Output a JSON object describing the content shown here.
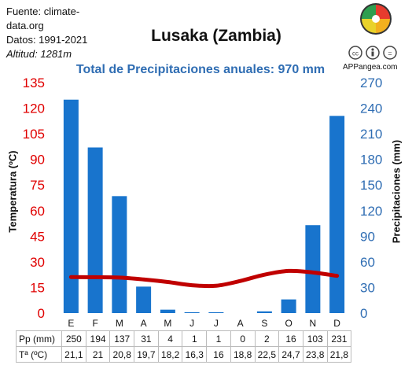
{
  "source": {
    "fuente_line1": "Fuente: climate-",
    "fuente_line2": "data.org",
    "datos": "Datos: 1991-2021",
    "altitud": "Altitud: 1281m"
  },
  "brand": "APPangea.com",
  "chart_data": {
    "type": "bar",
    "title": "Lusaka (Zambia)",
    "subtitle": "Total de Precipitaciones anuales: 970 mm",
    "categories": [
      "E",
      "F",
      "M",
      "A",
      "M",
      "J",
      "J",
      "A",
      "S",
      "O",
      "N",
      "D"
    ],
    "series": [
      {
        "name": "Pp (mm)",
        "type": "bar",
        "axis": "right",
        "values": [
          250,
          194,
          137,
          31,
          4,
          1,
          1,
          0,
          2,
          16,
          103,
          231
        ]
      },
      {
        "name": "Tª (ºC)",
        "type": "line",
        "axis": "left",
        "values": [
          21.1,
          21,
          20.8,
          19.7,
          18.2,
          16.3,
          16,
          18.8,
          22.5,
          24.7,
          23.8,
          21.8
        ],
        "display": [
          "21,1",
          "21",
          "20,8",
          "19,7",
          "18,2",
          "16,3",
          "16",
          "18,8",
          "22,5",
          "24,7",
          "23,8",
          "21,8"
        ]
      }
    ],
    "ylabel_left": "Temperatura (ºC)",
    "ylabel_right": "Precipitaciones (mm)",
    "ylim_left": [
      0,
      135
    ],
    "ylim_right": [
      0,
      270
    ],
    "yticks_left": [
      0,
      15,
      30,
      45,
      60,
      75,
      90,
      105,
      120,
      135
    ],
    "yticks_right": [
      0,
      30,
      60,
      90,
      120,
      150,
      180,
      210,
      240,
      270
    ],
    "grid": false,
    "colors": {
      "bars": "#1874cd",
      "temp_line": "#c00000",
      "left_axis": "#e00000",
      "right_axis": "#2f6db3"
    }
  }
}
